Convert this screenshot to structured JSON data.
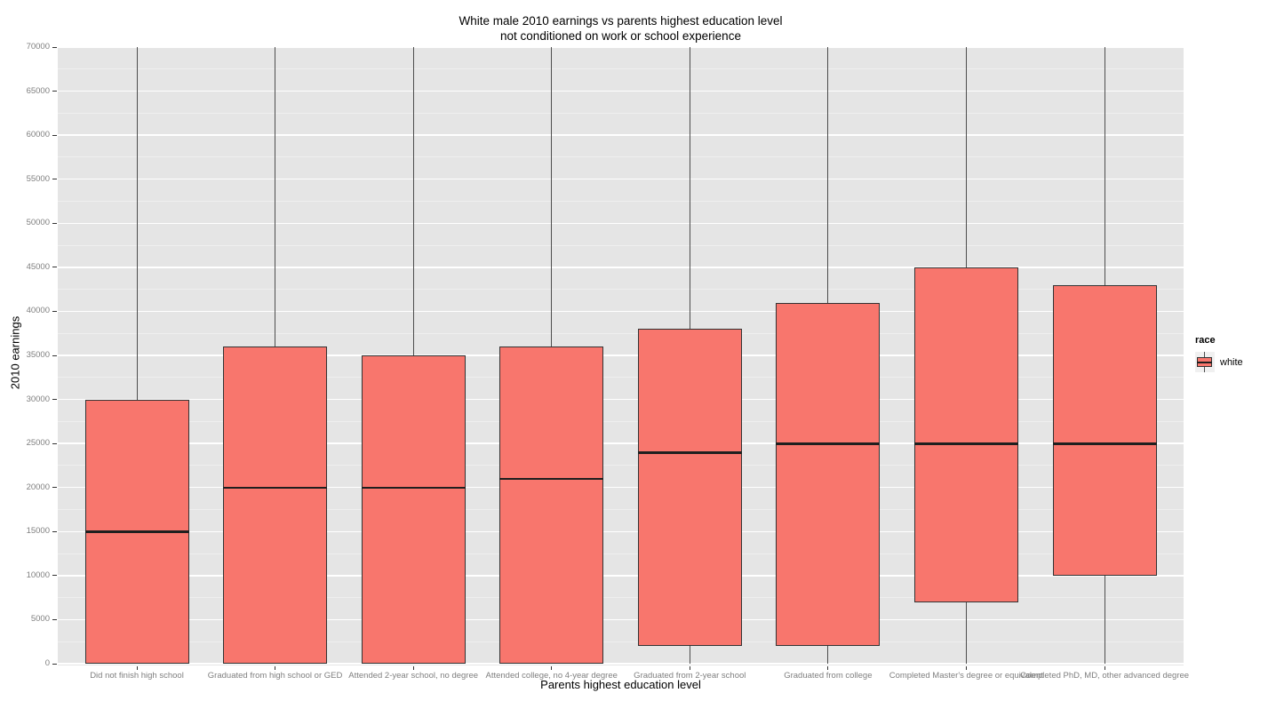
{
  "chart_data": {
    "type": "boxplot",
    "title": "White male 2010 earnings vs parents highest education level",
    "subtitle": "not conditioned on work or school experience",
    "xlabel": "Parents highest education level",
    "ylabel": "2010 earnings",
    "ylim": [
      0,
      70000
    ],
    "ytick_step": 5000,
    "grid": {
      "major": true,
      "minor": true
    },
    "yticks": [
      {
        "value": 0,
        "label": "0"
      },
      {
        "value": 5000,
        "label": "5000"
      },
      {
        "value": 10000,
        "label": "10000"
      },
      {
        "value": 15000,
        "label": "15000"
      },
      {
        "value": 20000,
        "label": "20000"
      },
      {
        "value": 25000,
        "label": "25000"
      },
      {
        "value": 30000,
        "label": "30000"
      },
      {
        "value": 35000,
        "label": "35000"
      },
      {
        "value": 40000,
        "label": "40000"
      },
      {
        "value": 45000,
        "label": "45000"
      },
      {
        "value": 50000,
        "label": "50000"
      },
      {
        "value": 55000,
        "label": "55000"
      },
      {
        "value": 60000,
        "label": "60000"
      },
      {
        "value": 65000,
        "label": "65000"
      },
      {
        "value": 70000,
        "label": "70000"
      }
    ],
    "categories": [
      "Did not finish high school",
      "Graduated from high school or GED",
      "Attended 2-year school, no degree",
      "Attended college, no 4-year degree",
      "Graduated from 2-year school",
      "Graduated from college",
      "Completed Master's degree or equivalent",
      "Completed PhD, MD, other advanced degree"
    ],
    "boxes": [
      {
        "category": "Did not finish high school",
        "whisker_low": 0,
        "q1": 0,
        "median": 15000,
        "q3": 30000,
        "whisker_high": 70000
      },
      {
        "category": "Graduated from high school or GED",
        "whisker_low": 0,
        "q1": 0,
        "median": 20000,
        "q3": 36000,
        "whisker_high": 70000
      },
      {
        "category": "Attended 2-year school, no degree",
        "whisker_low": 0,
        "q1": 0,
        "median": 20000,
        "q3": 35000,
        "whisker_high": 70000
      },
      {
        "category": "Attended college, no 4-year degree",
        "whisker_low": 0,
        "q1": 0,
        "median": 21000,
        "q3": 36000,
        "whisker_high": 70000
      },
      {
        "category": "Graduated from 2-year school",
        "whisker_low": 0,
        "q1": 2000,
        "median": 24000,
        "q3": 38000,
        "whisker_high": 70000
      },
      {
        "category": "Graduated from college",
        "whisker_low": 0,
        "q1": 2000,
        "median": 25000,
        "q3": 41000,
        "whisker_high": 70000
      },
      {
        "category": "Completed Master's degree or equivalent",
        "whisker_low": 0,
        "q1": 7000,
        "median": 25000,
        "q3": 45000,
        "whisker_high": 70000
      },
      {
        "category": "Completed PhD, MD, other advanced degree",
        "whisker_low": 0,
        "q1": 10000,
        "median": 25000,
        "q3": 43000,
        "whisker_high": 70000
      }
    ],
    "legend": {
      "title": "race",
      "position": "right",
      "entries": [
        {
          "label": "white",
          "fill": "#F8766D"
        }
      ]
    },
    "colors": {
      "box_fill": "#F8766D",
      "box_stroke": "#333333",
      "median_stroke": "#1F1F1F",
      "whisker_stroke": "#4D4D4D",
      "panel_bg": "#E5E5E5",
      "grid_major": "#FFFFFF",
      "grid_minor": "#EFEFEF",
      "axis_text": "#7F7F7F",
      "tick_mark": "#333333",
      "legend_key_bg": "#F0F0F0"
    }
  }
}
